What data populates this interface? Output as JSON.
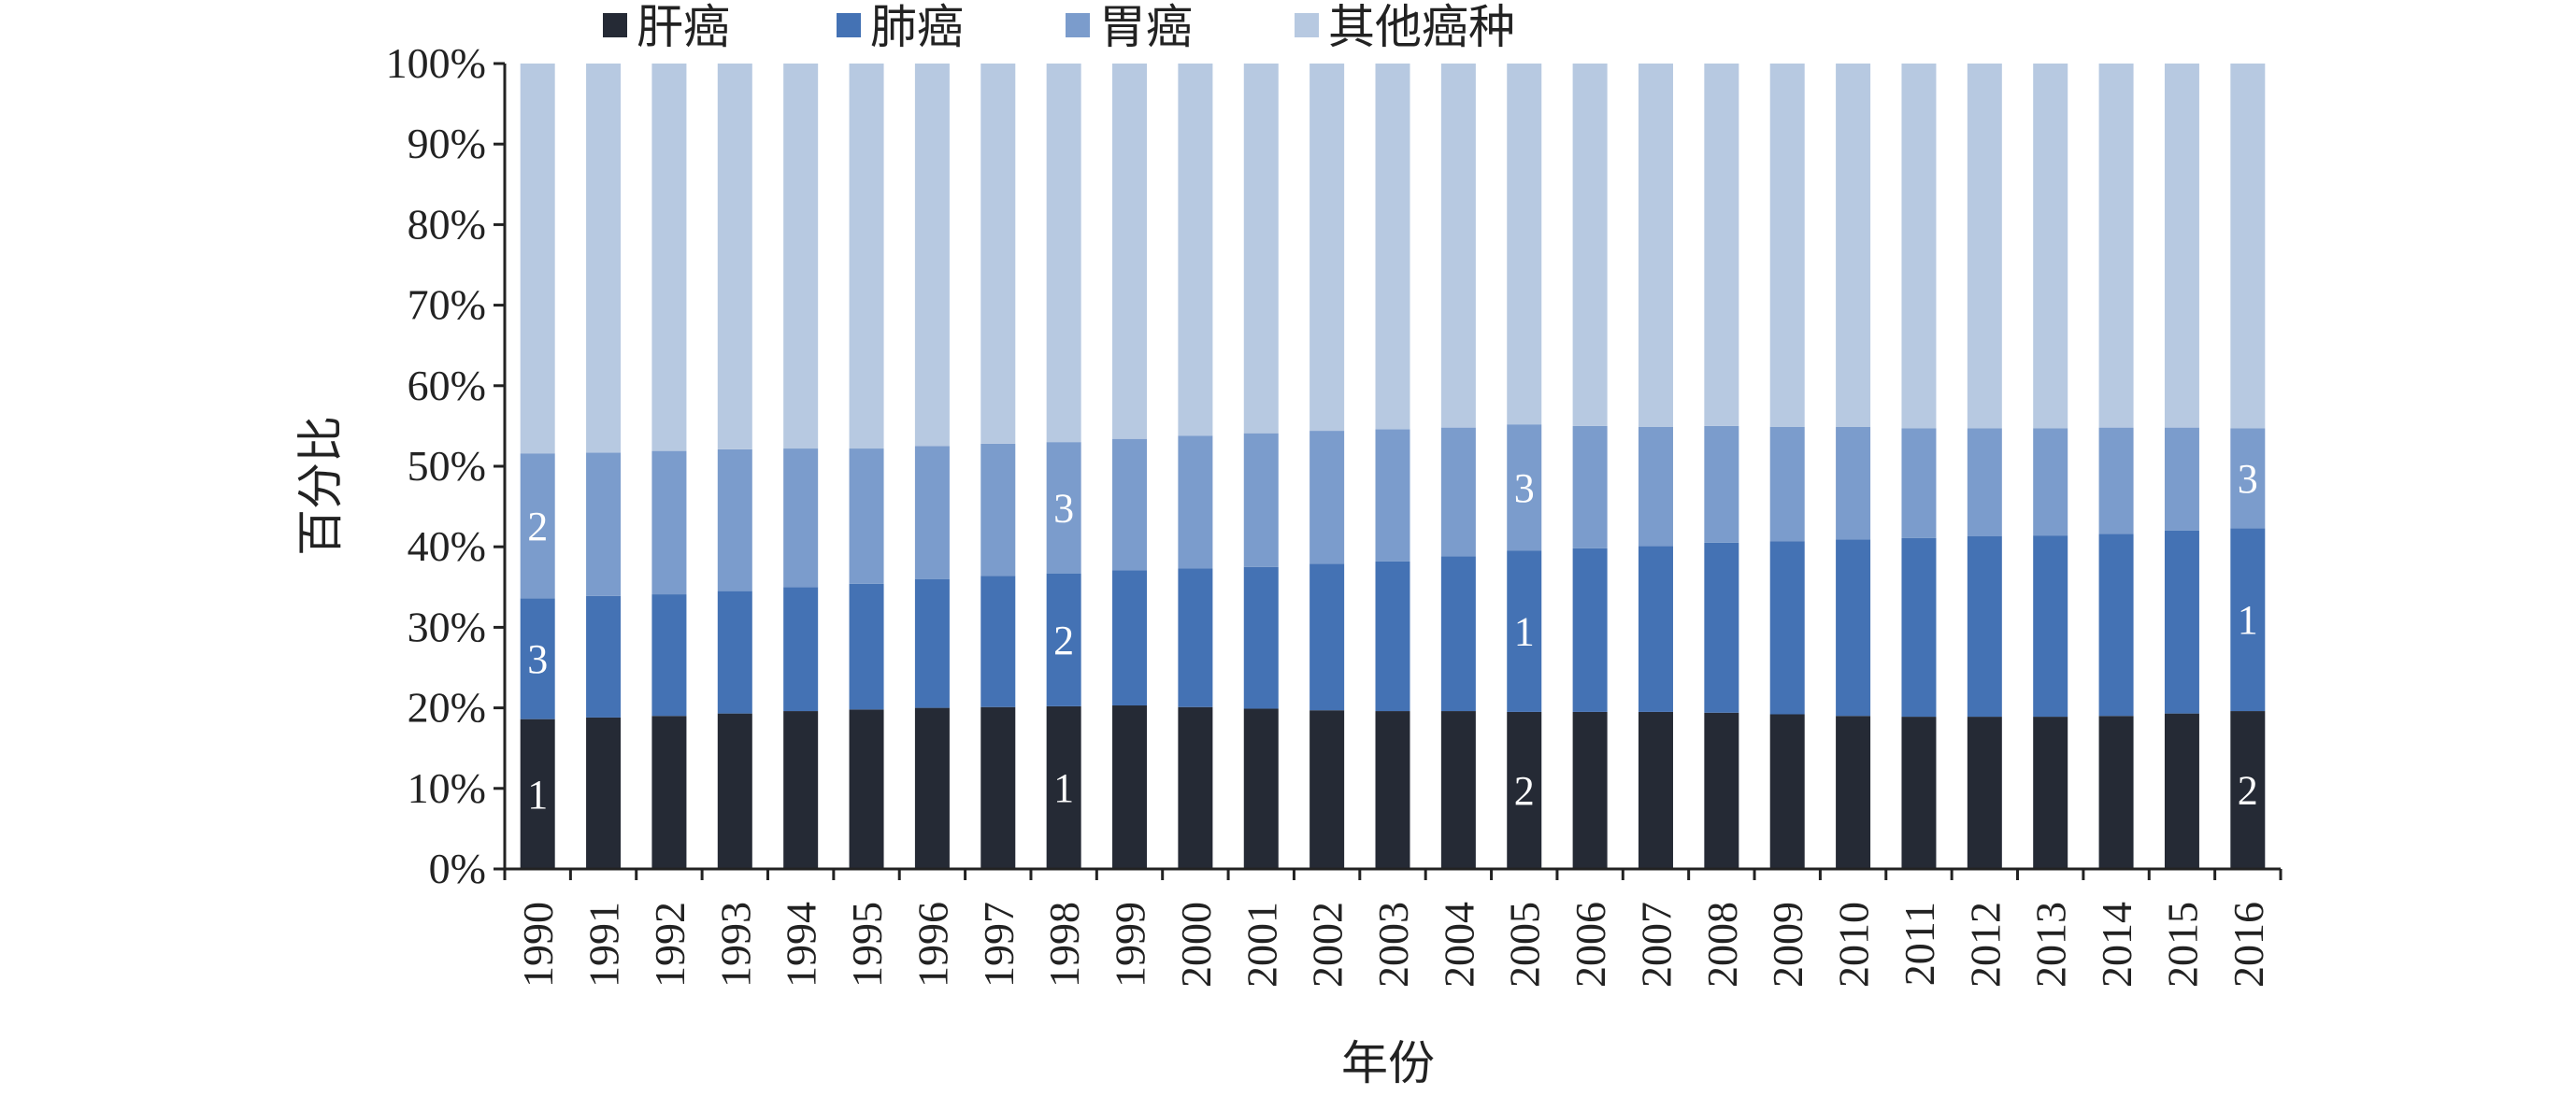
{
  "chart_data": {
    "type": "bar",
    "stacked": true,
    "percent": true,
    "xlabel": "年份",
    "ylabel": "百分比",
    "ylim": [
      0,
      100
    ],
    "yticks": [
      "0%",
      "10%",
      "20%",
      "30%",
      "40%",
      "50%",
      "60%",
      "70%",
      "80%",
      "90%",
      "100%"
    ],
    "legend_position": "top",
    "grid": false,
    "categories": [
      "1990",
      "1991",
      "1992",
      "1993",
      "1994",
      "1995",
      "1996",
      "1997",
      "1998",
      "1999",
      "2000",
      "2001",
      "2002",
      "2003",
      "2004",
      "2005",
      "2006",
      "2007",
      "2008",
      "2009",
      "2010",
      "2011",
      "2012",
      "2013",
      "2014",
      "2015",
      "2016"
    ],
    "series": [
      {
        "name": "肝癌",
        "color": "#252a35",
        "values": [
          18.6,
          18.8,
          19.0,
          19.3,
          19.6,
          19.8,
          20.0,
          20.1,
          20.2,
          20.3,
          20.1,
          19.9,
          19.7,
          19.6,
          19.6,
          19.5,
          19.5,
          19.5,
          19.4,
          19.2,
          19.0,
          18.9,
          18.9,
          18.9,
          19.0,
          19.3,
          19.6
        ]
      },
      {
        "name": "肺癌",
        "color": "#4472b4",
        "values": [
          15.0,
          15.1,
          15.1,
          15.2,
          15.4,
          15.6,
          16.0,
          16.3,
          16.5,
          16.8,
          17.2,
          17.6,
          18.2,
          18.6,
          19.2,
          20.0,
          20.3,
          20.6,
          21.1,
          21.5,
          21.9,
          22.2,
          22.4,
          22.5,
          22.6,
          22.7,
          22.7
        ]
      },
      {
        "name": "胃癌",
        "color": "#7b9ccc",
        "values": [
          18.0,
          17.8,
          17.8,
          17.6,
          17.2,
          16.8,
          16.5,
          16.4,
          16.3,
          16.3,
          16.5,
          16.6,
          16.5,
          16.4,
          16.0,
          15.7,
          15.2,
          14.8,
          14.5,
          14.2,
          14.0,
          13.6,
          13.4,
          13.3,
          13.2,
          12.8,
          12.4
        ]
      },
      {
        "name": "其他癌种",
        "color": "#b7c9e1",
        "values": [
          48.4,
          48.3,
          48.1,
          47.9,
          47.8,
          47.8,
          47.5,
          47.2,
          47.0,
          46.6,
          46.2,
          45.9,
          45.6,
          45.4,
          45.2,
          44.8,
          45.0,
          45.1,
          45.0,
          45.1,
          45.1,
          45.3,
          45.3,
          45.3,
          45.2,
          45.2,
          45.3
        ]
      }
    ],
    "annotations": [
      {
        "category": "1990",
        "series": "肝癌",
        "text": "1"
      },
      {
        "category": "1990",
        "series": "肺癌",
        "text": "3"
      },
      {
        "category": "1990",
        "series": "胃癌",
        "text": "2"
      },
      {
        "category": "1998",
        "series": "肝癌",
        "text": "1"
      },
      {
        "category": "1998",
        "series": "肺癌",
        "text": "2"
      },
      {
        "category": "1998",
        "series": "胃癌",
        "text": "3"
      },
      {
        "category": "2005",
        "series": "肝癌",
        "text": "2"
      },
      {
        "category": "2005",
        "series": "肺癌",
        "text": "1"
      },
      {
        "category": "2005",
        "series": "胃癌",
        "text": "3"
      },
      {
        "category": "2016",
        "series": "肝癌",
        "text": "2"
      },
      {
        "category": "2016",
        "series": "肺癌",
        "text": "1"
      },
      {
        "category": "2016",
        "series": "胃癌",
        "text": "3"
      }
    ]
  }
}
